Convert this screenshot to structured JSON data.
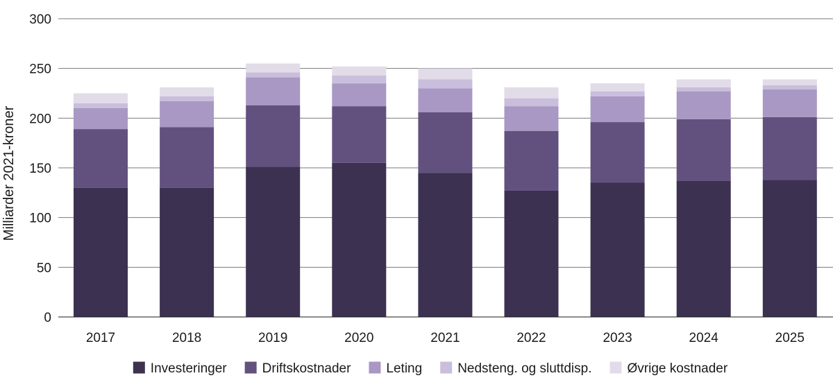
{
  "chart_data": {
    "type": "bar",
    "stacked": true,
    "title": "",
    "xlabel": "",
    "ylabel": "Milliarder 2021-kroner",
    "ylim": [
      0,
      300
    ],
    "yticks": [
      0,
      50,
      100,
      150,
      200,
      250,
      300
    ],
    "grid": true,
    "legend_position": "bottom",
    "categories": [
      "2017",
      "2018",
      "2019",
      "2020",
      "2021",
      "2022",
      "2023",
      "2024",
      "2025"
    ],
    "series": [
      {
        "name": "Investeringer",
        "color": "#3c3150",
        "values": [
          130,
          130,
          151,
          155,
          145,
          127,
          135,
          137,
          138
        ]
      },
      {
        "name": "Driftskostnader",
        "color": "#62517e",
        "values": [
          59,
          61,
          62,
          57,
          61,
          60,
          61,
          62,
          63
        ]
      },
      {
        "name": "Leting",
        "color": "#a898c3",
        "values": [
          21,
          26,
          28,
          23,
          24,
          25,
          26,
          28,
          28
        ]
      },
      {
        "name": "Nedsteng. og sluttdisp.",
        "color": "#c9bedb",
        "values": [
          5,
          5,
          5,
          8,
          9,
          8,
          5,
          4,
          4
        ]
      },
      {
        "name": "Øvrige kostnader",
        "color": "#e2dce9",
        "values": [
          10,
          9,
          9,
          9,
          11,
          11,
          8,
          8,
          6
        ]
      }
    ]
  }
}
